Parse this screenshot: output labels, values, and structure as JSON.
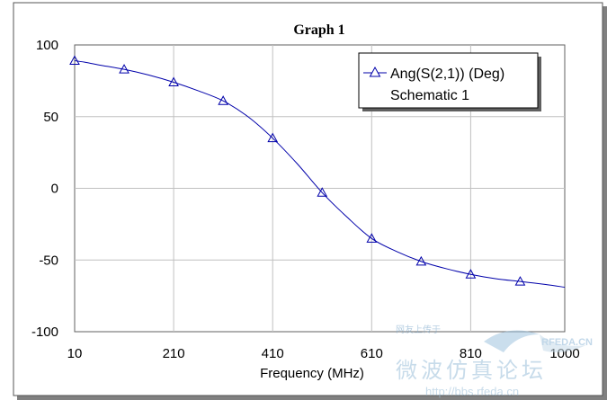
{
  "chart_data": {
    "type": "line",
    "title": "Graph 1",
    "xlabel": "Frequency (MHz)",
    "ylabel": "",
    "xlim": [
      10,
      1000
    ],
    "ylim": [
      -100,
      100
    ],
    "x_ticks": [
      "10",
      "210",
      "410",
      "610",
      "810",
      "1000"
    ],
    "x_tick_values": [
      10,
      210,
      410,
      610,
      810,
      1000
    ],
    "y_ticks": [
      "100",
      "50",
      "0",
      "-50",
      "-100"
    ],
    "y_tick_values": [
      100,
      50,
      0,
      -50,
      -100
    ],
    "grid": true,
    "legend_position": "top-right",
    "legend": {
      "entry": "Ang(S(2,1)) (Deg)",
      "subtitle": "Schematic 1"
    },
    "series": [
      {
        "name": "Ang(S(2,1)) (Deg)",
        "color": "#0000aa",
        "marker": "triangle",
        "x": [
          10,
          30,
          60,
          110,
          160,
          210,
          260,
          310,
          360,
          410,
          460,
          510,
          560,
          610,
          660,
          710,
          760,
          810,
          860,
          910,
          960,
          1000
        ],
        "values": [
          89,
          88,
          86,
          83,
          79,
          74,
          68,
          61,
          50,
          35,
          17,
          -3,
          -20,
          -35,
          -44,
          -51,
          -56,
          -60,
          -63,
          -65,
          -67,
          -69
        ],
        "marker_x": [
          10,
          110,
          210,
          310,
          410,
          510,
          610,
          710,
          810,
          910
        ],
        "marker_values": [
          89,
          83,
          74,
          61,
          35,
          -3,
          -35,
          -51,
          -60,
          -65
        ]
      }
    ]
  },
  "watermark": {
    "brand": "RFEDA.CN",
    "cn_text": "微波仿真论坛",
    "cn_small": "网友上传于",
    "url": "http://bbs.rfeda.cn"
  }
}
